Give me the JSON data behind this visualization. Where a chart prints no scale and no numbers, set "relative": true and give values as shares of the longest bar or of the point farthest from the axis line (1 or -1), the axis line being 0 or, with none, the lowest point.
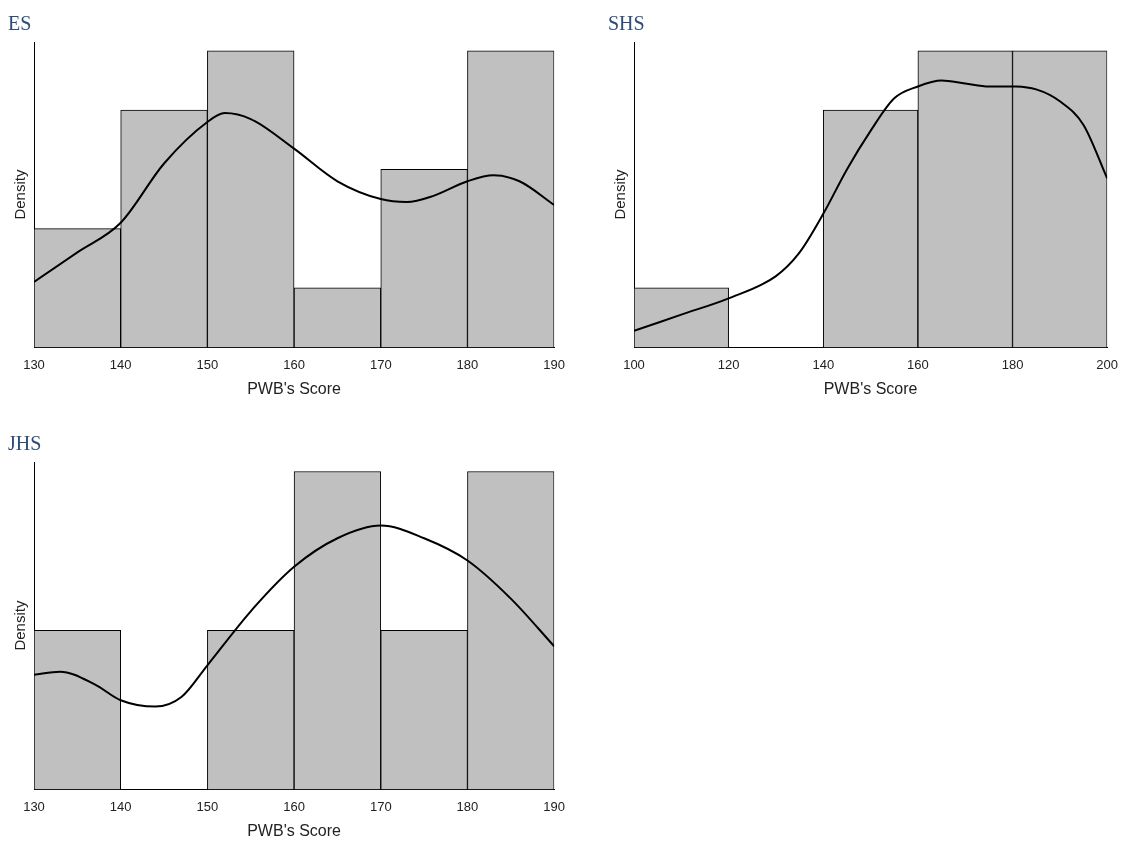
{
  "chart_data": [
    {
      "type": "histogram",
      "title": "ES",
      "xlabel": "PWB's Score",
      "ylabel": "Density",
      "relative": true,
      "bins": [
        130,
        140,
        150,
        160,
        170,
        180,
        190
      ],
      "values": [
        0.4,
        0.8,
        1,
        0.2,
        0.6,
        1
      ],
      "color": "#c0c0c0",
      "xlim": [
        130,
        190
      ],
      "xticks": [
        130,
        140,
        150,
        160,
        170,
        180,
        190
      ],
      "series": [
        {
          "type": "line",
          "color": "#000000",
          "x": [
            130,
            135,
            140,
            145,
            150,
            152,
            155,
            160,
            165,
            170,
            173,
            176,
            180,
            183,
            186,
            190
          ],
          "values": [
            0.22,
            0.32,
            0.42,
            0.62,
            0.76,
            0.79,
            0.77,
            0.67,
            0.56,
            0.5,
            0.49,
            0.51,
            0.56,
            0.58,
            0.56,
            0.48
          ]
        }
      ]
    },
    {
      "type": "histogram",
      "title": "SHS",
      "xlabel": "PWB's Score",
      "ylabel": "Density",
      "relative": true,
      "bins": [
        100,
        120,
        140,
        160,
        180,
        200
      ],
      "values": [
        0.2,
        0,
        0.8,
        1,
        1
      ],
      "color": "#c0c0c0",
      "xlim": [
        100,
        200
      ],
      "xticks": [
        100,
        120,
        140,
        160,
        180,
        200
      ],
      "series": [
        {
          "type": "line",
          "color": "#000000",
          "x": [
            100,
            110,
            120,
            130,
            135,
            140,
            145,
            150,
            155,
            160,
            165,
            170,
            175,
            180,
            185,
            190,
            195,
            200
          ],
          "values": [
            0.055,
            0.11,
            0.165,
            0.24,
            0.32,
            0.45,
            0.6,
            0.73,
            0.84,
            0.88,
            0.9,
            0.89,
            0.88,
            0.88,
            0.87,
            0.83,
            0.75,
            0.57
          ]
        }
      ]
    },
    {
      "type": "histogram",
      "title": "JHS",
      "xlabel": "PWB's Score",
      "ylabel": "Density",
      "relative": true,
      "bins": [
        130,
        140,
        150,
        160,
        170,
        180,
        190
      ],
      "values": [
        0.5,
        0,
        0.5,
        1,
        0.5,
        1
      ],
      "color": "#c0c0c0",
      "xlim": [
        130,
        190
      ],
      "xticks": [
        130,
        140,
        150,
        160,
        170,
        180,
        190
      ],
      "series": [
        {
          "type": "line",
          "color": "#000000",
          "x": [
            130,
            133,
            137,
            140,
            144,
            147,
            150,
            155,
            160,
            165,
            170,
            175,
            180,
            185,
            190
          ],
          "values": [
            0.36,
            0.37,
            0.33,
            0.28,
            0.26,
            0.29,
            0.39,
            0.56,
            0.7,
            0.79,
            0.83,
            0.79,
            0.72,
            0.6,
            0.45
          ]
        }
      ]
    }
  ]
}
